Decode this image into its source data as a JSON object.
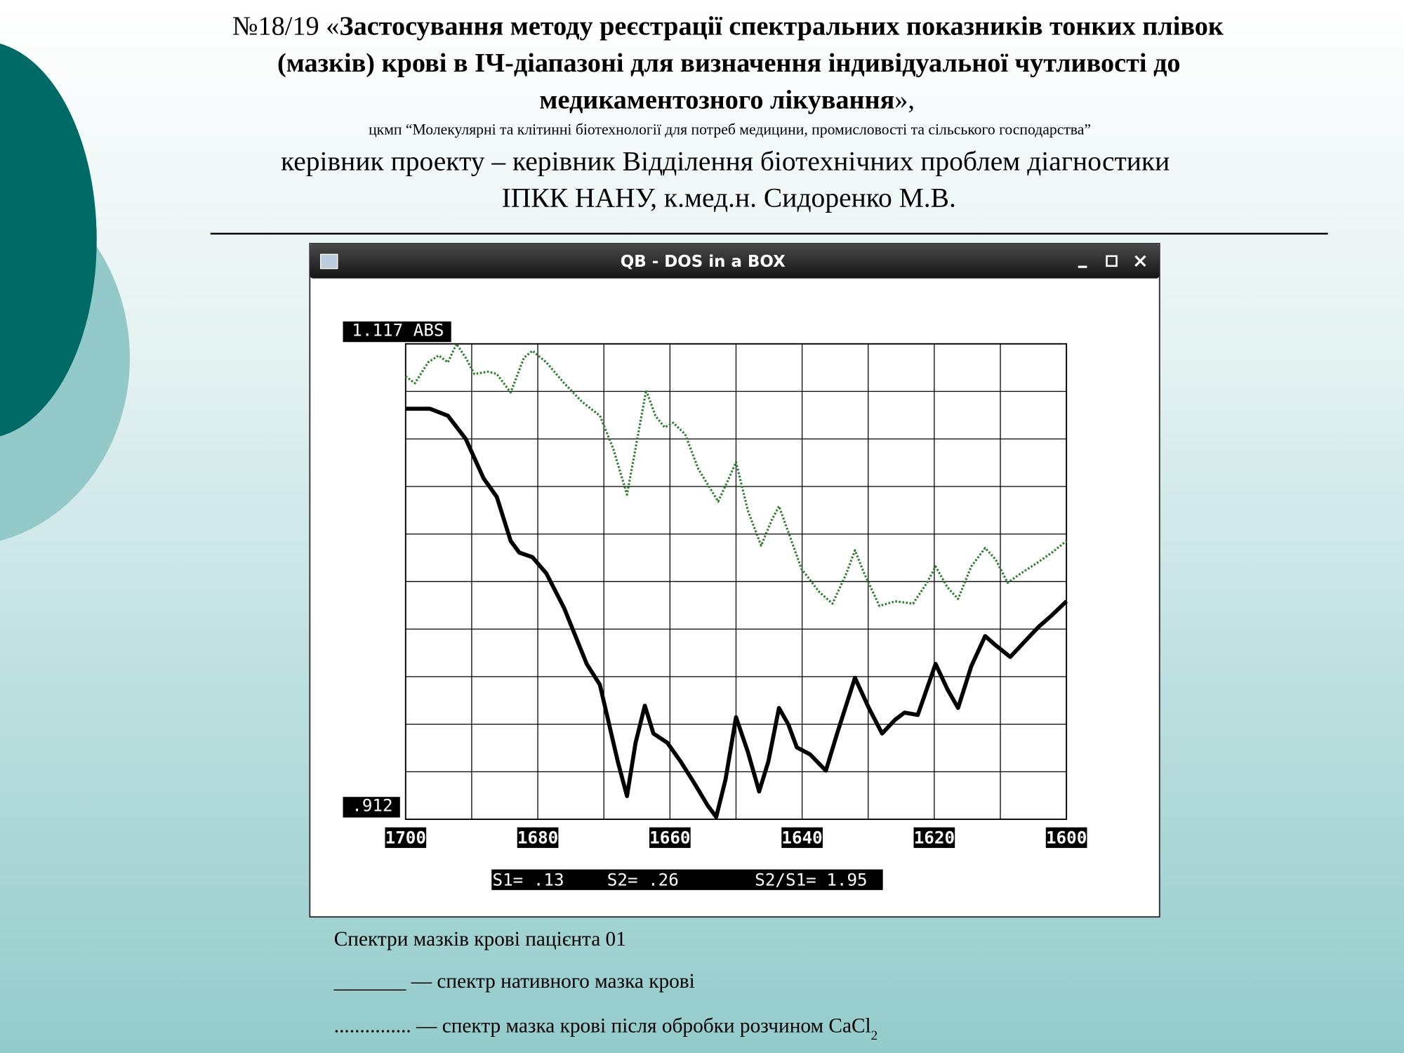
{
  "header": {
    "number": "№18/19 «",
    "title_lines": [
      "Застосування методу реєстрації спектральних показників тонких плівок",
      "(мазків) крові в ІЧ-діапазоні для визначення індивідуальної чутливості до",
      "медикаментозного лікування"
    ],
    "suffix": "»,",
    "center": "цкмп “Молекулярні та клітинні біотехнології для потреб медицини, промисловості та сільського господарства”",
    "leader_lines": [
      "керівник проекту – керівник Відділення біотехнічних проблем діагностики",
      "ІПКК НАНУ, к.мед.н. Сидоренко М.В."
    ]
  },
  "window": {
    "title": "QB - DOS in a BOX",
    "stats": [
      "S1= .13",
      "S2= .26",
      "S2/S1= 1.95"
    ]
  },
  "chart_data": {
    "type": "line",
    "xlim": [
      1700,
      1600
    ],
    "ylim": [
      0.912,
      1.117
    ],
    "xticks": [
      1700,
      1680,
      1660,
      1640,
      1620,
      1600
    ],
    "yticks": [
      {
        "value": 1.117,
        "label": "1.117  ABS"
      },
      {
        "value": 0.912,
        "label": ".912"
      }
    ],
    "grid": true,
    "series": [
      {
        "color": "#000000",
        "style": "solid",
        "x": [
          1700,
          1696.3,
          1693.6,
          1690.9,
          1688.2,
          1686.2,
          1684.1,
          1682.8,
          1680.8,
          1678.7,
          1676.0,
          1672.6,
          1670.6,
          1667.9,
          1666.5,
          1665.2,
          1663.8,
          1662.5,
          1660.4,
          1658.4,
          1656.4,
          1654.3,
          1653.0,
          1651.6,
          1650.0,
          1648.2,
          1646.5,
          1645.1,
          1643.5,
          1642.1,
          1640.8,
          1638.8,
          1636.4,
          1634.7,
          1632.0,
          1629.9,
          1627.9,
          1625.9,
          1624.5,
          1622.5,
          1619.8,
          1618.0,
          1616.4,
          1614.4,
          1612.3,
          1610.7,
          1608.5,
          1606.2,
          1604.2,
          1602.2,
          1600
        ],
        "values": [
          1.089,
          1.089,
          1.086,
          1.076,
          1.059,
          1.051,
          1.032,
          1.027,
          1.025,
          1.018,
          1.003,
          0.979,
          0.97,
          0.937,
          0.922,
          0.945,
          0.961,
          0.949,
          0.945,
          0.937,
          0.928,
          0.918,
          0.913,
          0.929,
          0.956,
          0.941,
          0.924,
          0.937,
          0.96,
          0.953,
          0.943,
          0.94,
          0.933,
          0.949,
          0.973,
          0.96,
          0.949,
          0.955,
          0.958,
          0.957,
          0.979,
          0.968,
          0.96,
          0.978,
          0.991,
          0.987,
          0.982,
          0.989,
          0.995,
          1.0,
          1.006
        ]
      },
      {
        "color": "#2e7d2e",
        "style": "dotted",
        "x": [
          1700,
          1698.6,
          1696.6,
          1695.0,
          1693.6,
          1692.3,
          1690.9,
          1689.6,
          1687.5,
          1686.2,
          1684.1,
          1682.1,
          1680.8,
          1678.7,
          1676.0,
          1673.3,
          1670.6,
          1668.6,
          1666.5,
          1665.2,
          1663.6,
          1662.2,
          1660.8,
          1659.5,
          1657.7,
          1655.7,
          1652.7,
          1651.4,
          1650.0,
          1648.2,
          1646.2,
          1644.6,
          1643.5,
          1642.1,
          1640.1,
          1637.4,
          1635.4,
          1633.3,
          1632.0,
          1630.6,
          1628.3,
          1625.9,
          1623.2,
          1621.1,
          1619.8,
          1618.0,
          1616.4,
          1614.4,
          1612.3,
          1610.7,
          1608.9,
          1606.9,
          1604.2,
          1602.2,
          1600
        ],
        "values": [
          1.103,
          1.1,
          1.109,
          1.112,
          1.109,
          1.117,
          1.111,
          1.104,
          1.105,
          1.104,
          1.096,
          1.111,
          1.114,
          1.109,
          1.1,
          1.092,
          1.086,
          1.072,
          1.052,
          1.072,
          1.097,
          1.086,
          1.081,
          1.083,
          1.078,
          1.063,
          1.049,
          1.057,
          1.066,
          1.045,
          1.03,
          1.041,
          1.047,
          1.036,
          1.02,
          1.01,
          1.005,
          1.018,
          1.028,
          1.018,
          1.004,
          1.006,
          1.005,
          1.014,
          1.021,
          1.012,
          1.007,
          1.021,
          1.029,
          1.024,
          1.014,
          1.018,
          1.023,
          1.027,
          1.032
        ]
      }
    ]
  },
  "caption": {
    "title": "Спектри мазків крові пацієнта 01",
    "legend_solid": "_______ — спектр нативного мазка крові",
    "legend_dotted": "............... — спектр мазка крові після обробки розчином CaCl",
    "subscript": "2"
  }
}
